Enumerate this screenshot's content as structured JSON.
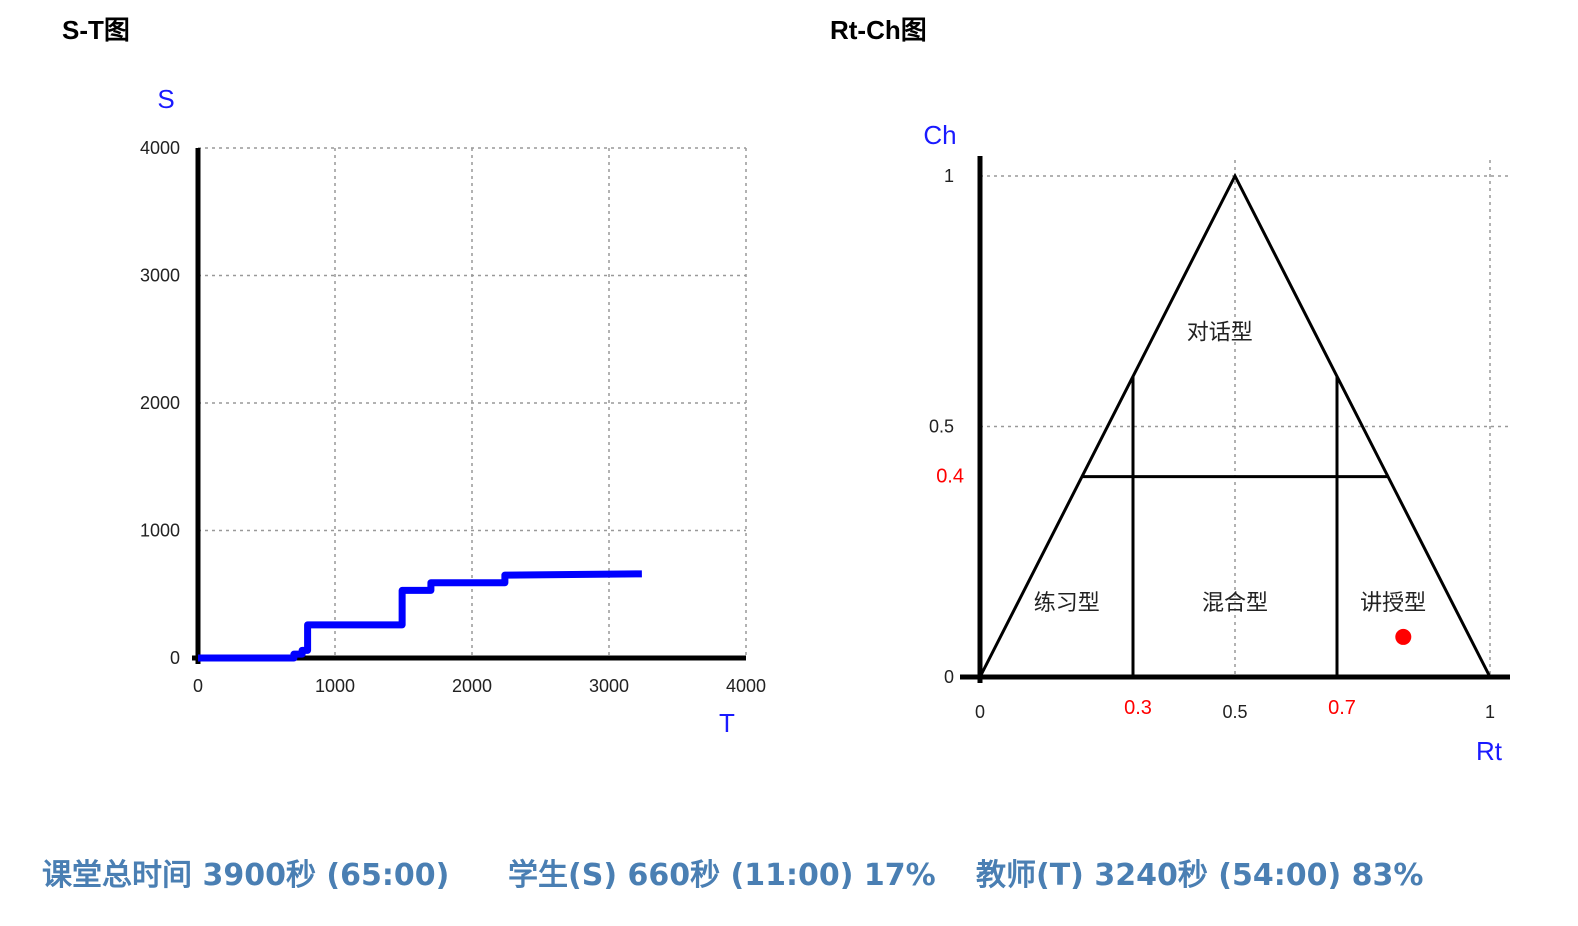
{
  "titles": {
    "st": "S-T图",
    "rtch": "Rt-Ch图"
  },
  "summary": {
    "total": "课堂总时间 3900秒 (65:00)",
    "student": "学生(S) 660秒 (11:00) 17%",
    "teacher": "教师(T) 3240秒 (54:00) 83%"
  },
  "colors": {
    "series": "#0000ff",
    "axis_label": "#1a1aff",
    "highlight": "#ff0000",
    "summary_text": "#4a7fb3"
  },
  "chart_data": [
    {
      "type": "line",
      "title": "S-T图",
      "xlabel": "T",
      "ylabel": "S",
      "xlim": [
        0,
        4000
      ],
      "ylim": [
        0,
        4000
      ],
      "xticks": [
        "0",
        "1000",
        "2000",
        "3000",
        "4000"
      ],
      "yticks": [
        "0",
        "1000",
        "2000",
        "3000",
        "4000"
      ],
      "grid": true,
      "step": true,
      "series": [
        {
          "points": [
            [
              0,
              0
            ],
            [
              700,
              0
            ],
            [
              700,
              30
            ],
            [
              760,
              30
            ],
            [
              760,
              60
            ],
            [
              800,
              60
            ],
            [
              800,
              260
            ],
            [
              1490,
              260
            ],
            [
              1490,
              530
            ],
            [
              1700,
              530
            ],
            [
              1700,
              590
            ],
            [
              2240,
              590
            ],
            [
              2240,
              650
            ],
            [
              3240,
              660
            ]
          ]
        }
      ]
    },
    {
      "type": "scatter",
      "title": "Rt-Ch图",
      "xlabel": "Rt",
      "ylabel": "Ch",
      "xlim": [
        0,
        1
      ],
      "ylim": [
        0,
        1
      ],
      "xticks": [
        "0",
        "0.5",
        "1"
      ],
      "yticks": [
        "0",
        "0.5",
        "1"
      ],
      "extra_xticks": [
        "0.3",
        "0.7"
      ],
      "extra_yticks": [
        "0.4"
      ],
      "grid": true,
      "regions": [
        "对话型",
        "练习型",
        "混合型",
        "讲授型"
      ],
      "boundaries": {
        "triangle": [
          [
            0,
            0
          ],
          [
            0.5,
            1
          ],
          [
            1,
            0
          ]
        ],
        "horizontal_ch": 0.4,
        "vertical_rt": [
          0.3,
          0.7
        ]
      },
      "point": {
        "rt": 0.83,
        "ch": 0.08
      }
    }
  ]
}
